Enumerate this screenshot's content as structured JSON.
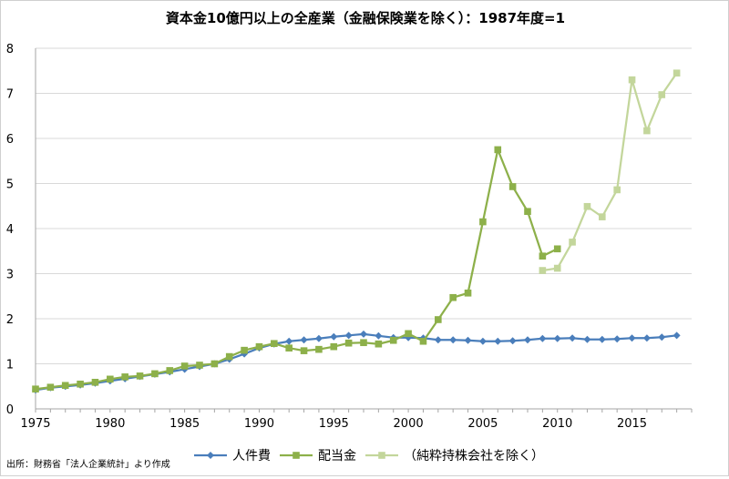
{
  "chart_data": {
    "type": "line",
    "title": "資本金10億円以上の全産業（金融保険業を除く）：1987年度=1",
    "source": "出所：財務省「法人企業統計」より作成",
    "xlim": [
      1975,
      2019
    ],
    "ylim": [
      0,
      8
    ],
    "x_ticks": [
      "1975",
      "1980",
      "1985",
      "1990",
      "1995",
      "2000",
      "2005",
      "2010",
      "2015"
    ],
    "y_ticks": [
      "0",
      "1",
      "2",
      "3",
      "4",
      "5",
      "6",
      "7",
      "8"
    ],
    "grid": "horizontal",
    "legend_position": "bottom",
    "series": [
      {
        "name": "人件費",
        "color": "#4a7ebb",
        "marker": "diamond",
        "x": [
          1975,
          1976,
          1977,
          1978,
          1979,
          1980,
          1981,
          1982,
          1983,
          1984,
          1985,
          1986,
          1987,
          1988,
          1989,
          1990,
          1991,
          1992,
          1993,
          1994,
          1995,
          1996,
          1997,
          1998,
          1999,
          2000,
          2001,
          2002,
          2003,
          2004,
          2005,
          2006,
          2007,
          2008,
          2009,
          2010,
          2011,
          2012,
          2013,
          2014,
          2015,
          2016,
          2017,
          2018
        ],
        "values": [
          0.42,
          0.47,
          0.5,
          0.53,
          0.57,
          0.62,
          0.67,
          0.72,
          0.77,
          0.82,
          0.88,
          0.94,
          1.0,
          1.1,
          1.22,
          1.35,
          1.44,
          1.5,
          1.53,
          1.56,
          1.6,
          1.63,
          1.66,
          1.62,
          1.58,
          1.58,
          1.57,
          1.53,
          1.53,
          1.52,
          1.5,
          1.5,
          1.51,
          1.53,
          1.56,
          1.56,
          1.57,
          1.54,
          1.54,
          1.55,
          1.57,
          1.57,
          1.59,
          1.63
        ]
      },
      {
        "name": "配当金",
        "color": "#8db04a",
        "marker": "square",
        "x": [
          1975,
          1976,
          1977,
          1978,
          1979,
          1980,
          1981,
          1982,
          1983,
          1984,
          1985,
          1986,
          1987,
          1988,
          1989,
          1990,
          1991,
          1992,
          1993,
          1994,
          1995,
          1996,
          1997,
          1998,
          1999,
          2000,
          2001,
          2002,
          2003,
          2004,
          2005,
          2006,
          2007,
          2008,
          2009,
          2010
        ],
        "values": [
          0.44,
          0.48,
          0.52,
          0.55,
          0.59,
          0.66,
          0.71,
          0.73,
          0.78,
          0.85,
          0.95,
          0.97,
          1.0,
          1.16,
          1.3,
          1.38,
          1.45,
          1.35,
          1.29,
          1.32,
          1.38,
          1.46,
          1.47,
          1.44,
          1.52,
          1.67,
          1.5,
          1.98,
          2.47,
          2.57,
          4.15,
          5.75,
          4.93,
          4.38,
          3.39,
          3.55
        ]
      },
      {
        "name": "（純粋持株会社を除く）",
        "color": "#c3d69b",
        "marker": "square",
        "x": [
          2009,
          2010,
          2011,
          2012,
          2013,
          2014,
          2015,
          2016,
          2017,
          2018
        ],
        "values": [
          3.07,
          3.12,
          3.7,
          4.49,
          4.26,
          4.86,
          7.3,
          6.17,
          6.97,
          7.45
        ]
      }
    ]
  }
}
